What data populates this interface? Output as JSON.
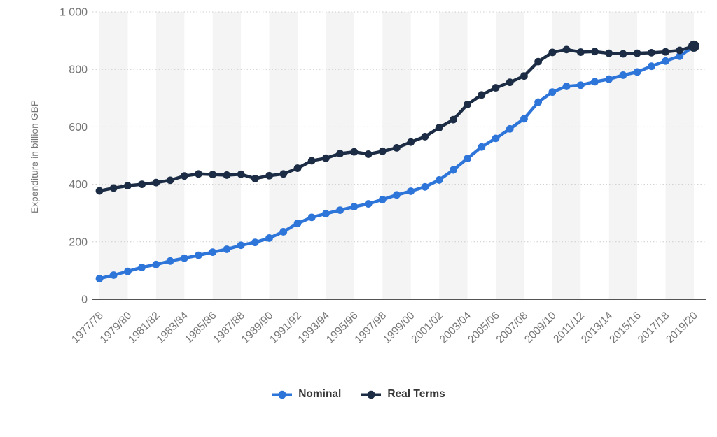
{
  "chart_data": {
    "type": "line",
    "title": "",
    "ylabel": "Expenditure in billion GBP",
    "xlabel": "",
    "ylim": [
      0,
      1000
    ],
    "yticks": [
      0,
      200,
      400,
      600,
      800,
      1000
    ],
    "ytick_labels": [
      "0",
      "200",
      "400",
      "600",
      "800",
      "1 000"
    ],
    "xtick_label_every": 2,
    "grid": "dotted-horizontal",
    "background_bands": true,
    "legend_position": "bottom",
    "categories": [
      "1977/78",
      "1978/79",
      "1979/80",
      "1980/81",
      "1981/82",
      "1982/83",
      "1983/84",
      "1984/85",
      "1985/86",
      "1986/87",
      "1987/88",
      "1988/89",
      "1989/90",
      "1990/91",
      "1991/92",
      "1992/93",
      "1993/94",
      "1994/95",
      "1995/96",
      "1996/97",
      "1997/98",
      "1998/99",
      "1999/00",
      "2000/01",
      "2001/02",
      "2002/03",
      "2003/04",
      "2004/05",
      "2005/06",
      "2006/07",
      "2007/08",
      "2008/09",
      "2009/10",
      "2010/11",
      "2011/12",
      "2012/13",
      "2013/14",
      "2014/15",
      "2015/16",
      "2016/17",
      "2017/18",
      "2018/19",
      "2019/20"
    ],
    "series": [
      {
        "name": "Nominal",
        "color": "#2e75d9",
        "values": [
          72,
          84,
          97,
          111,
          121,
          133,
          143,
          153,
          164,
          174,
          188,
          198,
          213,
          235,
          264,
          285,
          298,
          310,
          322,
          332,
          347,
          363,
          376,
          391,
          415,
          450,
          490,
          530,
          560,
          593,
          628,
          686,
          721,
          741,
          745,
          757,
          766,
          780,
          791,
          811,
          829,
          846,
          880
        ]
      },
      {
        "name": "Real Terms",
        "color": "#1b2c44",
        "values": [
          377,
          387,
          395,
          400,
          406,
          414,
          429,
          436,
          434,
          432,
          435,
          420,
          430,
          436,
          456,
          482,
          491,
          507,
          513,
          505,
          515,
          527,
          547,
          566,
          597,
          625,
          678,
          711,
          736,
          755,
          777,
          827,
          859,
          869,
          860,
          862,
          856,
          854,
          856,
          858,
          861,
          866,
          881
        ]
      }
    ],
    "style": {
      "band_color": "#f4f4f4",
      "grid_color": "#cccccc",
      "axis_color": "#1a1a1a",
      "tick_text_color": "#767676",
      "legend_text_color": "#373737"
    }
  }
}
